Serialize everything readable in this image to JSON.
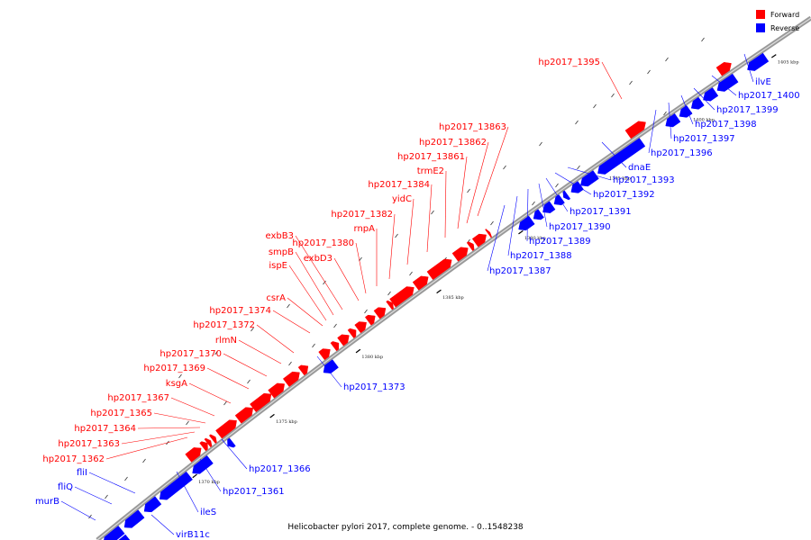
{
  "title": "Helicobacter pylori 2017, complete genome. - 0..1548238",
  "legend": [
    {
      "label": "Forward",
      "color": "#ff0000"
    },
    {
      "label": "Reverse",
      "color": "#0000ff"
    }
  ],
  "colors": {
    "forward": "#ff0000",
    "reverse": "#0000ff",
    "backbone": "#999999"
  },
  "ticks": [
    {
      "label": "1370 kbp",
      "kbp": 1370
    },
    {
      "label": "1375 kbp",
      "kbp": 1375
    },
    {
      "label": "1380 kbp",
      "kbp": 1380
    },
    {
      "label": "1385 kbp",
      "kbp": 1385
    },
    {
      "label": "1390 kbp",
      "kbp": 1390
    },
    {
      "label": "1395 kbp",
      "kbp": 1395
    },
    {
      "label": "1400 kbp",
      "kbp": 1400
    },
    {
      "label": "1405 kbp",
      "kbp": 1405
    }
  ],
  "forward_genes": [
    "hp2017_1362",
    "hp2017_1363",
    "hp2017_1364",
    "hp2017_1365",
    "hp2017_1367",
    "ksgA",
    "hp2017_1369",
    "hp2017_1370",
    "rlmN",
    "hp2017_1372",
    "hp2017_1374",
    "csrA",
    "ispE",
    "smpB",
    "exbB3",
    "exbD3",
    "hp2017_1380",
    "rnpA",
    "hp2017_1382",
    "yidC",
    "hp2017_1384",
    "trmE2",
    "hp2017_13861",
    "hp2017_13862",
    "hp2017_13863",
    "hp2017_1395"
  ],
  "reverse_genes": [
    "murB",
    "fliQ",
    "fliI",
    "virB11c",
    "ileS",
    "hp2017_1361",
    "hp2017_1366",
    "hp2017_1373",
    "hp2017_1387",
    "hp2017_1388",
    "hp2017_1389",
    "hp2017_1390",
    "hp2017_1391",
    "hp2017_1392",
    "hp2017_1393",
    "dnaE",
    "hp2017_1396",
    "hp2017_1397",
    "hp2017_1398",
    "hp2017_1399",
    "hp2017_1400",
    "ilvE"
  ]
}
